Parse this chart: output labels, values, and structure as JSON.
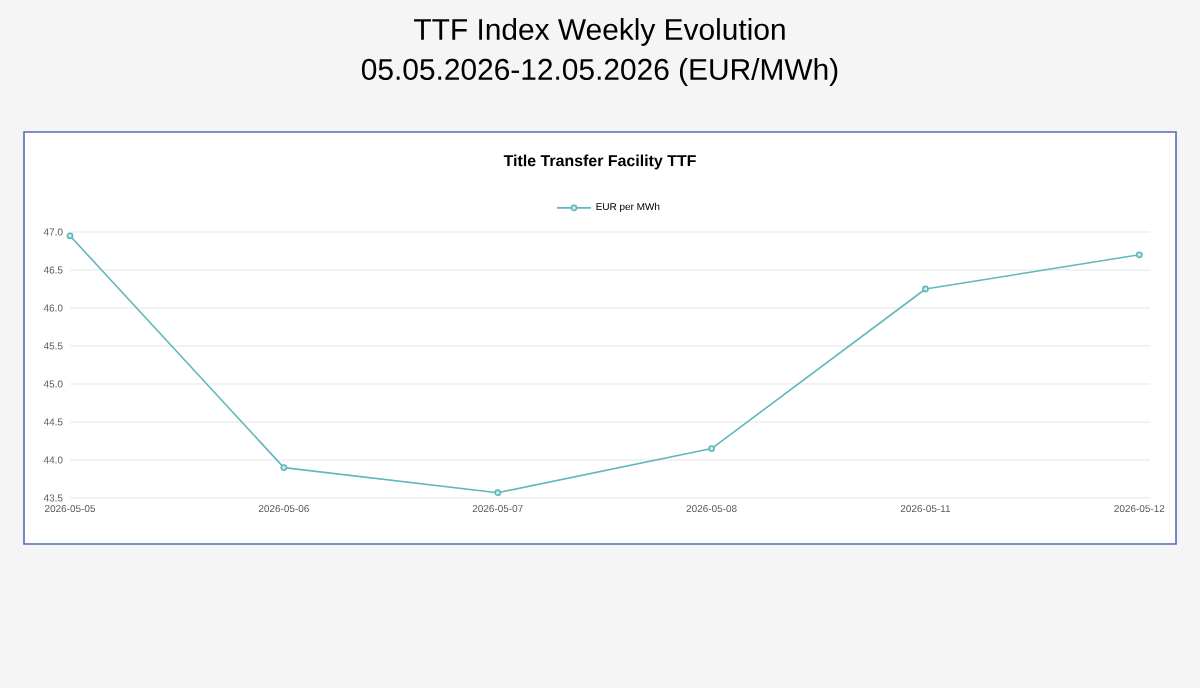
{
  "chart_data": {
    "type": "line",
    "title": "TTF Index Weekly Evolution",
    "subtitle": "05.05.2026-12.05.2026 (EUR/MWh)",
    "annotations": [
      "Title Transfer Facility TTF"
    ],
    "categories": [
      "2026-05-05",
      "2026-05-06",
      "2026-05-07",
      "2026-05-08",
      "2026-05-11",
      "2026-05-12"
    ],
    "series": [
      {
        "name": "EUR per MWh",
        "color": "#5fb8bb",
        "values": [
          46.95,
          43.9,
          43.57,
          44.15,
          46.25,
          46.7
        ]
      }
    ],
    "ylim": [
      43.5,
      47.0
    ],
    "yticks": [
      43.5,
      {
        "value": 44.0,
        "label": "44.0"
      },
      44.5,
      {
        "value": 45.0,
        "label": "45.0"
      },
      45.5,
      {
        "value": 46.0,
        "label": "46.0"
      },
      46.5,
      {
        "value": 47.0,
        "label": "47.0"
      }
    ],
    "grid": "y",
    "legend": "top",
    "marker": "circle"
  }
}
